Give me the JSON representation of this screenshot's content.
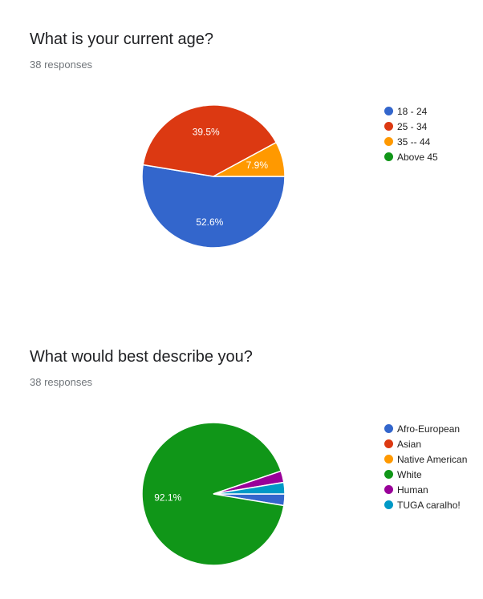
{
  "chart_data": [
    {
      "type": "pie",
      "title": "What is your current age?",
      "subtitle": "38 responses",
      "categories": [
        "18 - 24",
        "25 - 34",
        "35 -- 44",
        "Above 45"
      ],
      "values": [
        52.6,
        39.5,
        7.9,
        0
      ],
      "data_labels": [
        "52.6%",
        "39.5%",
        "7.9%",
        ""
      ],
      "colors": [
        "#3366cc",
        "#dc3912",
        "#ff9900",
        "#109618"
      ],
      "legend_position": "right"
    },
    {
      "type": "pie",
      "title": "What would best describe you?",
      "subtitle": "38 responses",
      "categories": [
        "Afro-European",
        "Asian",
        "Native American",
        "White",
        "Human",
        "TUGA caralho!"
      ],
      "values": [
        2.6,
        0,
        0,
        92.1,
        2.6,
        2.6
      ],
      "data_labels": [
        "",
        "",
        "",
        "92.1%",
        "",
        ""
      ],
      "colors": [
        "#3366cc",
        "#dc3912",
        "#ff9900",
        "#109618",
        "#990099",
        "#0099c6"
      ],
      "legend_position": "right"
    }
  ]
}
